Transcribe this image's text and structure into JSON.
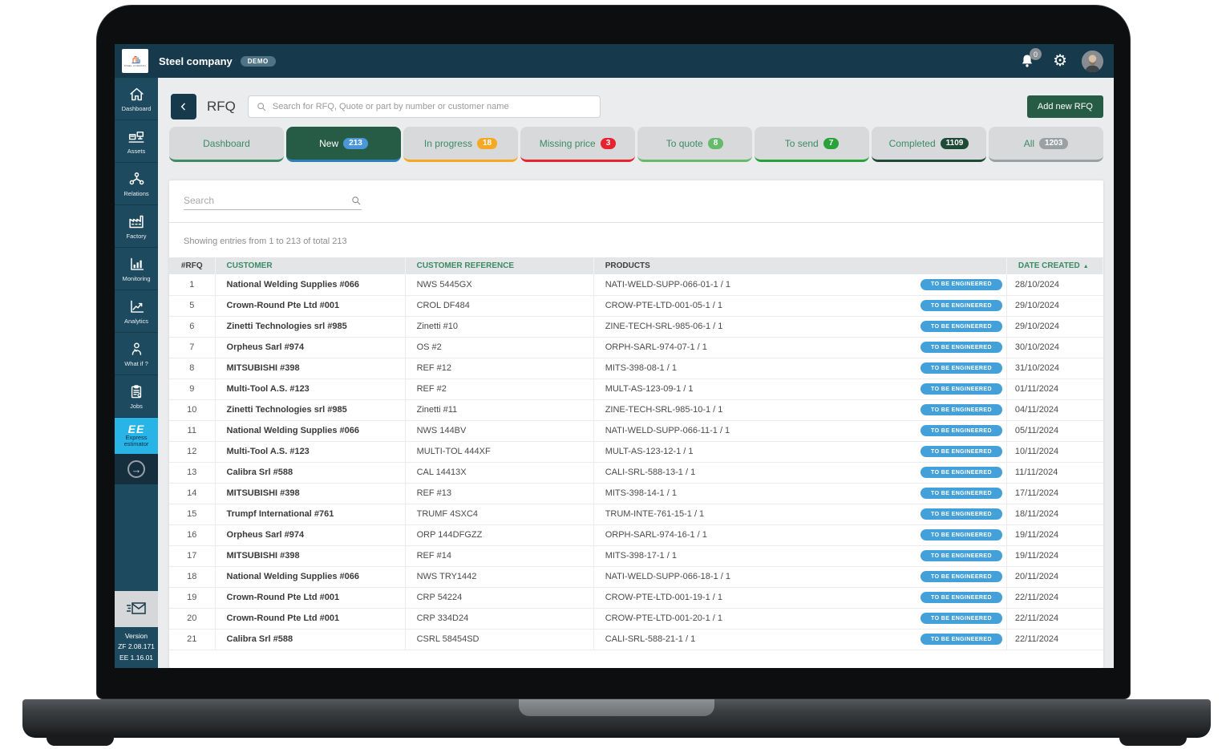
{
  "colors": {
    "topbar": "#17394c",
    "sidebar": "#1d4a5f",
    "page_bg": "#ebeced",
    "active_tab": "#265c45",
    "add_button": "#265c45",
    "accent_green": "#3a8b66",
    "status_pill": "#44a0d8",
    "express_cyan": "#29b4e8"
  },
  "topbar": {
    "logo_text": "STEEL COMPANY",
    "app_name": "Steel company",
    "demo_badge": "DEMO",
    "notification_count": "0"
  },
  "sidebar": {
    "items": [
      {
        "label": "Dashboard",
        "icon": "home-icon"
      },
      {
        "label": "Assets",
        "icon": "assets-icon"
      },
      {
        "label": "Relations",
        "icon": "relations-icon"
      },
      {
        "label": "Factory",
        "icon": "factory-icon"
      },
      {
        "label": "Monitoring",
        "icon": "monitoring-icon"
      },
      {
        "label": "Analytics",
        "icon": "analytics-icon"
      },
      {
        "label": "What if ?",
        "icon": "what-if-icon"
      },
      {
        "label": "Jobs",
        "icon": "jobs-icon"
      }
    ],
    "express_estimator": {
      "logo": "EE",
      "label_line1": "Express",
      "label_line2": "estimator"
    },
    "collapse_arrow": "→",
    "version": {
      "title": "Version",
      "zf": "ZF 2.08.171",
      "ee": "EE 1.16.01"
    }
  },
  "page_header": {
    "back": "‹",
    "title": "RFQ",
    "search_placeholder": "Search for RFQ, Quote or part by number or customer name",
    "add_button": "Add new RFQ"
  },
  "tabs": [
    {
      "label": "Dashboard",
      "count": null,
      "active": false,
      "accent": "#3d8b67",
      "badge_bg": null
    },
    {
      "label": "New",
      "count": "213",
      "active": true,
      "accent": "#2e81b8",
      "badge_bg": "#4a97d9"
    },
    {
      "label": "In progress",
      "count": "18",
      "active": false,
      "accent": "#f5a922",
      "badge_bg": "#f5a922"
    },
    {
      "label": "Missing price",
      "count": "3",
      "active": false,
      "accent": "#e8222f",
      "badge_bg": "#e8222f"
    },
    {
      "label": "To quote",
      "count": "8",
      "active": false,
      "accent": "#66bb6a",
      "badge_bg": "#66bb6a"
    },
    {
      "label": "To send",
      "count": "7",
      "active": false,
      "accent": "#27a33a",
      "badge_bg": "#27a33a"
    },
    {
      "label": "Completed",
      "count": "1109",
      "active": false,
      "accent": "#1d4b37",
      "badge_bg": "#1d4b37"
    },
    {
      "label": "All",
      "count": "1203",
      "active": false,
      "accent": "#9aa0a3",
      "badge_bg": "#9aa0a3"
    }
  ],
  "panel": {
    "search_placeholder": "Search",
    "showing_text": "Showing entries from 1 to 213 of total 213"
  },
  "table": {
    "columns": [
      "#RFQ",
      "CUSTOMER",
      "CUSTOMER REFERENCE",
      "PRODUCTS",
      "DATE CREATED"
    ],
    "sort_icon": "▲",
    "rows": [
      {
        "rfq": "1",
        "customer": "National Welding Supplies #066",
        "reference": "NWS 5445GX",
        "product": "NATI-WELD-SUPP-066-01-1 / 1",
        "status": "TO BE ENGINEERED",
        "date": "28/10/2024"
      },
      {
        "rfq": "5",
        "customer": "Crown-Round Pte Ltd #001",
        "reference": "CROL DF484",
        "product": "CROW-PTE-LTD-001-05-1 / 1",
        "status": "TO BE ENGINEERED",
        "date": "29/10/2024"
      },
      {
        "rfq": "6",
        "customer": "Zinetti Technologies srl #985",
        "reference": "Zinetti #10",
        "product": "ZINE-TECH-SRL-985-06-1 / 1",
        "status": "TO BE ENGINEERED",
        "date": "29/10/2024"
      },
      {
        "rfq": "7",
        "customer": "Orpheus Sarl #974",
        "reference": "OS #2",
        "product": "ORPH-SARL-974-07-1 / 1",
        "status": "TO BE ENGINEERED",
        "date": "30/10/2024"
      },
      {
        "rfq": "8",
        "customer": "MITSUBISHI #398",
        "reference": "REF #12",
        "product": "MITS-398-08-1 / 1",
        "status": "TO BE ENGINEERED",
        "date": "31/10/2024"
      },
      {
        "rfq": "9",
        "customer": "Multi-Tool A.S. #123",
        "reference": "REF #2",
        "product": "MULT-AS-123-09-1 / 1",
        "status": "TO BE ENGINEERED",
        "date": "01/11/2024"
      },
      {
        "rfq": "10",
        "customer": "Zinetti Technologies srl #985",
        "reference": "Zinetti #11",
        "product": "ZINE-TECH-SRL-985-10-1 / 1",
        "status": "TO BE ENGINEERED",
        "date": "04/11/2024"
      },
      {
        "rfq": "11",
        "customer": "National Welding Supplies #066",
        "reference": "NWS 144BV",
        "product": "NATI-WELD-SUPP-066-11-1 / 1",
        "status": "TO BE ENGINEERED",
        "date": "05/11/2024"
      },
      {
        "rfq": "12",
        "customer": "Multi-Tool A.S. #123",
        "reference": "MULTI-TOL 444XF",
        "product": "MULT-AS-123-12-1 / 1",
        "status": "TO BE ENGINEERED",
        "date": "10/11/2024"
      },
      {
        "rfq": "13",
        "customer": "Calibra Srl #588",
        "reference": "CAL 14413X",
        "product": "CALI-SRL-588-13-1 / 1",
        "status": "TO BE ENGINEERED",
        "date": "11/11/2024"
      },
      {
        "rfq": "14",
        "customer": "MITSUBISHI #398",
        "reference": "REF #13",
        "product": "MITS-398-14-1 / 1",
        "status": "TO BE ENGINEERED",
        "date": "17/11/2024"
      },
      {
        "rfq": "15",
        "customer": "Trumpf International #761",
        "reference": "TRUMF 4SXC4",
        "product": "TRUM-INTE-761-15-1 / 1",
        "status": "TO BE ENGINEERED",
        "date": "18/11/2024"
      },
      {
        "rfq": "16",
        "customer": "Orpheus Sarl #974",
        "reference": "ORP 144DFGZZ",
        "product": "ORPH-SARL-974-16-1 / 1",
        "status": "TO BE ENGINEERED",
        "date": "19/11/2024"
      },
      {
        "rfq": "17",
        "customer": "MITSUBISHI #398",
        "reference": "REF #14",
        "product": "MITS-398-17-1 / 1",
        "status": "TO BE ENGINEERED",
        "date": "19/11/2024"
      },
      {
        "rfq": "18",
        "customer": "National Welding Supplies #066",
        "reference": "NWS TRY1442",
        "product": "NATI-WELD-SUPP-066-18-1 / 1",
        "status": "TO BE ENGINEERED",
        "date": "20/11/2024"
      },
      {
        "rfq": "19",
        "customer": "Crown-Round Pte Ltd #001",
        "reference": "CRP 54224",
        "product": "CROW-PTE-LTD-001-19-1 / 1",
        "status": "TO BE ENGINEERED",
        "date": "22/11/2024"
      },
      {
        "rfq": "20",
        "customer": "Crown-Round Pte Ltd #001",
        "reference": "CRP 334D24",
        "product": "CROW-PTE-LTD-001-20-1 / 1",
        "status": "TO BE ENGINEERED",
        "date": "22/11/2024"
      },
      {
        "rfq": "21",
        "customer": "Calibra Srl #588",
        "reference": "CSRL 58454SD",
        "product": "CALI-SRL-588-21-1 / 1",
        "status": "TO BE ENGINEERED",
        "date": "22/11/2024"
      }
    ]
  }
}
